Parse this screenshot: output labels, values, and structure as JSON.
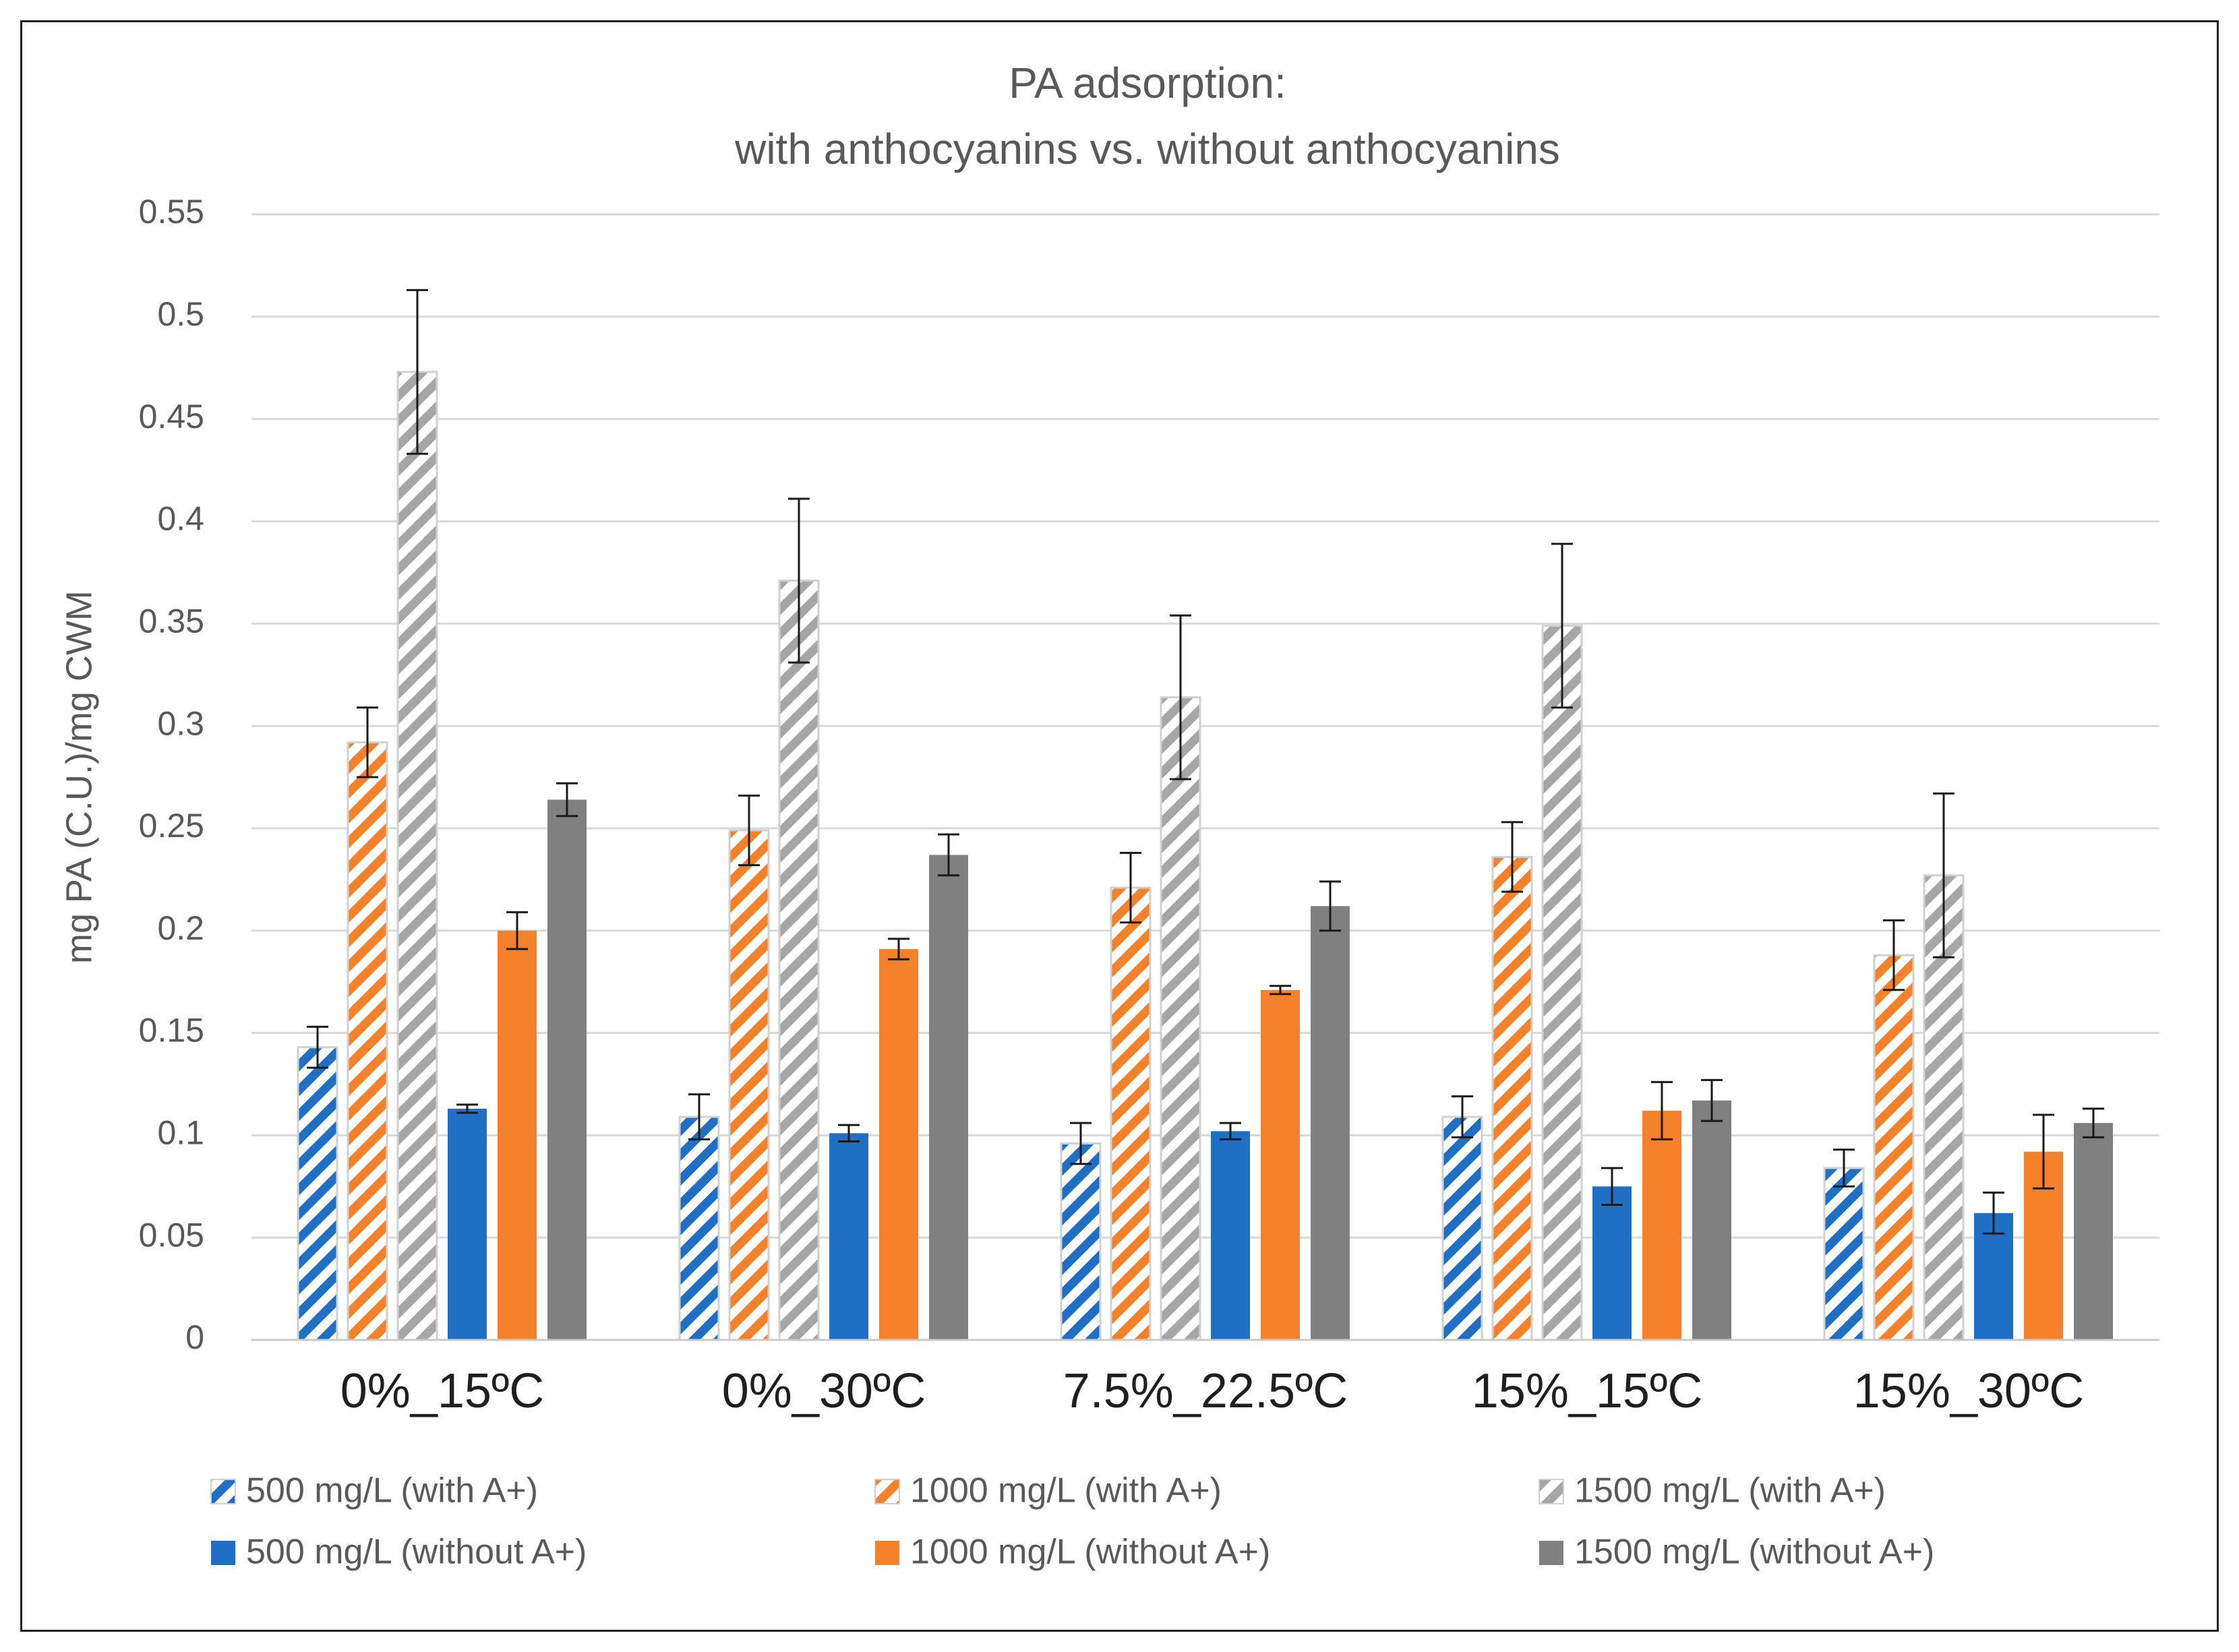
{
  "chart_data": {
    "type": "bar",
    "title": [
      "PA adsorption:",
      "with anthocyanins vs. without anthocyanins"
    ],
    "xlabel": "",
    "ylabel": "mg PA (C.U.)/mg CWM",
    "ylim": [
      0,
      0.55
    ],
    "yticks": [
      "0",
      "0.05",
      "0.1",
      "0.15",
      "0.2",
      "0.25",
      "0.3",
      "0.35",
      "0.4",
      "0.45",
      "0.5",
      "0.55"
    ],
    "grid": true,
    "legend_position": "bottom",
    "categories": [
      "0%_15ºC",
      "0%_30ºC",
      "7.5%_22.5ºC",
      "15%_15ºC",
      "15%_30ºC"
    ],
    "series": [
      {
        "name": "500 mg/L (with A+)",
        "color": "#1f6fc5",
        "pattern": "hatched",
        "values": [
          0.143,
          0.109,
          0.096,
          0.109,
          0.084
        ],
        "errors": [
          0.01,
          0.011,
          0.01,
          0.01,
          0.009
        ]
      },
      {
        "name": "1000 mg/L (with A+)",
        "color": "#f5822a",
        "pattern": "hatched",
        "values": [
          0.292,
          0.249,
          0.221,
          0.236,
          0.188
        ],
        "errors": [
          0.017,
          0.017,
          0.017,
          0.017,
          0.017
        ]
      },
      {
        "name": "1500 mg/L (with A+)",
        "color": "#a6a6a6",
        "pattern": "hatched",
        "values": [
          0.473,
          0.371,
          0.314,
          0.349,
          0.227
        ],
        "errors": [
          0.04,
          0.04,
          0.04,
          0.04,
          0.04
        ]
      },
      {
        "name": "500 mg/L (without A+)",
        "color": "#1f6fc5",
        "pattern": "solid",
        "values": [
          0.113,
          0.101,
          0.102,
          0.075,
          0.062
        ],
        "errors": [
          0.002,
          0.004,
          0.004,
          0.009,
          0.01
        ]
      },
      {
        "name": "1000 mg/L (without A+)",
        "color": "#f5822a",
        "pattern": "solid",
        "values": [
          0.2,
          0.191,
          0.171,
          0.112,
          0.092
        ],
        "errors": [
          0.009,
          0.005,
          0.002,
          0.014,
          0.018
        ]
      },
      {
        "name": "1500 mg/L (without A+)",
        "color": "#808080",
        "pattern": "solid",
        "values": [
          0.264,
          0.237,
          0.212,
          0.117,
          0.106
        ],
        "errors": [
          0.008,
          0.01,
          0.012,
          0.01,
          0.007
        ]
      }
    ]
  }
}
